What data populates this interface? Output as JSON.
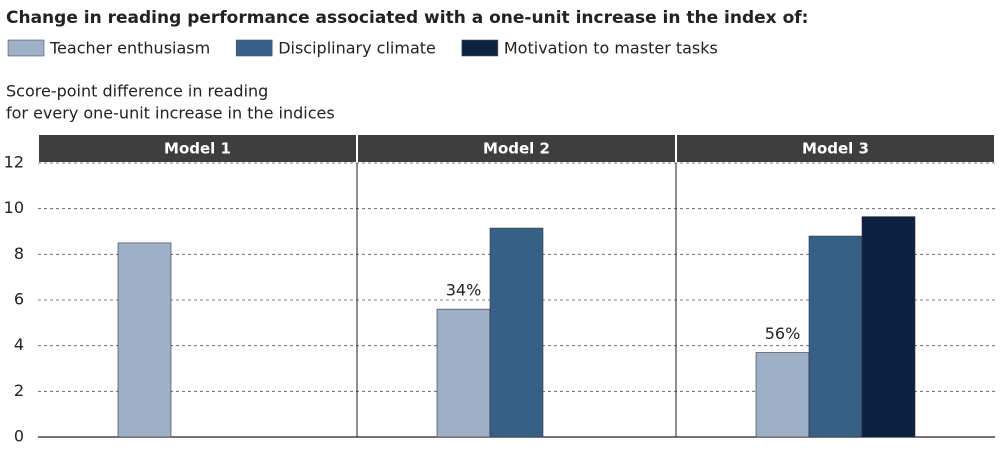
{
  "chart_data": {
    "type": "bar",
    "title": "Change in reading performance associated with a one-unit increase in the index of:",
    "y_label": [
      "Score-point difference in reading",
      "for every one-unit increase in the indices"
    ],
    "categories": [
      "Model 1",
      "Model 2",
      "Model 3"
    ],
    "series": [
      {
        "name": "Teacher enthusiasm",
        "color": "#9eb0c7",
        "values": [
          8.5,
          5.6,
          3.7
        ],
        "bar_annotations": [
          null,
          "34%",
          "56%"
        ]
      },
      {
        "name": "Disciplinary climate",
        "color": "#376089",
        "values": [
          null,
          9.15,
          8.8
        ]
      },
      {
        "name": "Motivation to master tasks",
        "color": "#0c2240",
        "values": [
          null,
          null,
          9.65
        ]
      }
    ],
    "ylim": [
      0,
      12
    ],
    "yticks": [
      0,
      2,
      4,
      6,
      8,
      10,
      12
    ],
    "grid": true
  }
}
